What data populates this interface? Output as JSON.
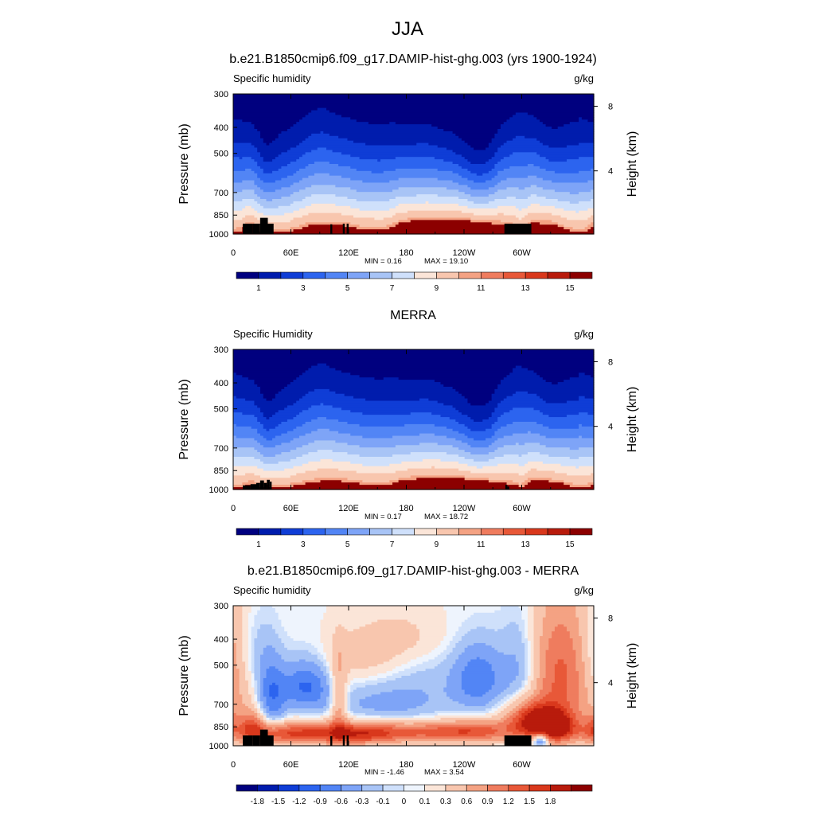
{
  "figure": {
    "title": "JJA",
    "colors": {
      "full_palette": [
        "#00007f",
        "#001cad",
        "#0f3dd6",
        "#2c64ef",
        "#5285f5",
        "#7ea4f7",
        "#a8c4f6",
        "#cfe0fb",
        "#fbe5d8",
        "#f8c6ae",
        "#f4a283",
        "#ef7c5e",
        "#e85838",
        "#d9381c",
        "#b81b0c",
        "#8c0000"
      ],
      "diff_palette": [
        "#00007f",
        "#001cad",
        "#0f3dd6",
        "#2c64ef",
        "#5285f5",
        "#7ea4f7",
        "#a8c4f6",
        "#cfe0fb",
        "#eef4fd",
        "#fbe5d8",
        "#f8c6ae",
        "#f4a283",
        "#ef7c5e",
        "#e85838",
        "#d9381c",
        "#b81b0c",
        "#8c0000"
      ],
      "terrain": "#000000"
    }
  },
  "chart_data": [
    {
      "type": "heatmap",
      "title": "b.e21.B1850cmip6.f09_g17.DAMIP-hist-ghg.003 (yrs 1900-1924)",
      "variable": "Specific humidity",
      "units": "g/kg",
      "ylabel": "Pressure (mb)",
      "y2label": "Height (km)",
      "x_ticks": [
        "0",
        "60E",
        "120E",
        "180",
        "120W",
        "60W"
      ],
      "y_ticks": [
        "300",
        "400",
        "500",
        "700",
        "850",
        "1000"
      ],
      "y2_ticks": [
        "8",
        "4"
      ],
      "ylim": [
        1000,
        300
      ],
      "min_text": "MIN = 0.16",
      "max_text": "MAX = 19.10",
      "colorbar_labels": [
        "1",
        "3",
        "5",
        "7",
        "9",
        "11",
        "13",
        "15"
      ],
      "levels": [
        1,
        2,
        3,
        4,
        5,
        6,
        7,
        8,
        9,
        10,
        11,
        12,
        13,
        14,
        15
      ],
      "bl_height_mb": [
        985,
        978,
        972,
        940,
        925,
        930,
        965,
        975,
        970,
        968,
        980,
        984,
        986,
        987,
        988,
        975,
        960,
        960,
        945,
        935,
        930,
        925,
        925,
        925,
        922,
        922,
        925,
        928,
        930,
        935,
        938,
        945,
        955,
        960,
        962,
        965,
        963,
        965,
        968,
        962,
        955,
        940,
        920,
        905,
        905,
        900,
        895,
        895,
        890,
        888,
        885,
        885,
        885,
        885,
        885,
        882,
        880,
        880,
        885,
        888,
        892,
        895,
        900,
        905,
        905,
        905,
        910,
        915,
        915,
        920,
        925,
        930,
        940,
        960,
        985,
        960,
        925,
        910,
        910,
        915,
        915,
        915,
        915,
        930,
        940,
        955,
        965,
        975,
        980,
        985
      ],
      "top_height_mb": [
        350,
        353,
        357,
        362,
        365,
        372,
        385,
        405,
        440,
        445,
        435,
        420,
        405,
        395,
        390,
        380,
        372,
        362,
        350,
        340,
        330,
        325,
        322,
        320,
        325,
        330,
        335,
        340,
        345,
        345,
        350,
        355,
        360,
        360,
        362,
        366,
        370,
        370,
        370,
        368,
        366,
        366,
        368,
        370,
        370,
        372,
        372,
        372,
        370,
        370,
        370,
        375,
        380,
        385,
        390,
        395,
        400,
        410,
        420,
        430,
        440,
        455,
        465,
        470,
        470,
        460,
        445,
        420,
        392,
        372,
        362,
        352,
        340,
        330,
        330,
        335,
        340,
        345,
        350,
        360,
        370,
        380,
        385,
        385,
        380,
        375,
        370,
        365,
        365,
        365
      ],
      "terrain": [
        {
          "lon": [
            10,
            20
          ],
          "p_top": 915
        },
        {
          "lon": [
            20,
            28
          ],
          "p_top": 915
        },
        {
          "lon": [
            28,
            36
          ],
          "p_top": 870
        },
        {
          "lon": [
            36,
            42
          ],
          "p_top": 915
        },
        {
          "lon": [
            101,
            103
          ],
          "p_top": 920
        },
        {
          "lon": [
            114,
            116
          ],
          "p_top": 915
        },
        {
          "lon": [
            118,
            120
          ],
          "p_top": 915
        },
        {
          "lon": [
            282,
            310
          ],
          "p_top": 915
        }
      ]
    },
    {
      "type": "heatmap",
      "title": "MERRA",
      "variable": "Specific Humidity",
      "units": "g/kg",
      "ylabel": "Pressure (mb)",
      "y2label": "Height (km)",
      "x_ticks": [
        "0",
        "60E",
        "120E",
        "180",
        "120W",
        "60W"
      ],
      "y_ticks": [
        "300",
        "400",
        "500",
        "700",
        "850",
        "1000"
      ],
      "y2_ticks": [
        "8",
        "4"
      ],
      "ylim": [
        1000,
        300
      ],
      "min_text": "MIN = 0.17",
      "max_text": "MAX = 18.72",
      "colorbar_labels": [
        "1",
        "3",
        "5",
        "7",
        "9",
        "11",
        "13",
        "15"
      ],
      "levels": [
        1,
        2,
        3,
        4,
        5,
        6,
        7,
        8,
        9,
        10,
        11,
        12,
        13,
        14,
        15
      ],
      "bl_height_mb": [
        985,
        982,
        978,
        968,
        955,
        955,
        965,
        975,
        972,
        968,
        978,
        980,
        982,
        984,
        985,
        975,
        965,
        962,
        955,
        948,
        945,
        938,
        935,
        930,
        928,
        928,
        928,
        930,
        935,
        938,
        940,
        945,
        950,
        955,
        960,
        962,
        960,
        962,
        965,
        962,
        958,
        950,
        940,
        930,
        925,
        920,
        915,
        915,
        910,
        905,
        905,
        900,
        900,
        900,
        900,
        900,
        902,
        905,
        908,
        912,
        916,
        920,
        925,
        930,
        930,
        930,
        935,
        940,
        940,
        945,
        948,
        955,
        960,
        965,
        990,
        965,
        935,
        928,
        928,
        930,
        930,
        932,
        935,
        940,
        945,
        955,
        965,
        975,
        980,
        985
      ],
      "top_height_mb": [
        345,
        350,
        355,
        360,
        365,
        372,
        385,
        405,
        440,
        450,
        440,
        425,
        410,
        398,
        390,
        382,
        372,
        362,
        350,
        340,
        332,
        326,
        322,
        320,
        325,
        330,
        335,
        340,
        345,
        347,
        350,
        355,
        358,
        360,
        362,
        364,
        366,
        367,
        368,
        366,
        364,
        364,
        366,
        368,
        368,
        370,
        370,
        370,
        368,
        368,
        368,
        372,
        378,
        383,
        390,
        395,
        400,
        410,
        420,
        432,
        445,
        460,
        470,
        472,
        470,
        460,
        445,
        420,
        390,
        370,
        360,
        350,
        338,
        328,
        328,
        333,
        338,
        343,
        350,
        360,
        370,
        380,
        385,
        385,
        380,
        375,
        370,
        365,
        365,
        365
      ],
      "terrain": [
        {
          "lon": [
            10,
            18
          ],
          "p_top": 965
        },
        {
          "lon": [
            18,
            24
          ],
          "p_top": 955
        },
        {
          "lon": [
            24,
            28
          ],
          "p_top": 945
        },
        {
          "lon": [
            28,
            32
          ],
          "p_top": 925
        },
        {
          "lon": [
            32,
            35
          ],
          "p_top": 945
        },
        {
          "lon": [
            35,
            38
          ],
          "p_top": 920
        },
        {
          "lon": [
            38,
            40
          ],
          "p_top": 935
        },
        {
          "lon": [
            283,
            285
          ],
          "p_top": 960
        },
        {
          "lon": [
            285,
            287
          ],
          "p_top": 975
        }
      ]
    },
    {
      "type": "heatmap",
      "title": "b.e21.B1850cmip6.f09_g17.DAMIP-hist-ghg.003 - MERRA",
      "variable": "Specific humidity",
      "units": "g/kg",
      "ylabel": "Pressure (mb)",
      "y2label": "Height (km)",
      "x_ticks": [
        "0",
        "60E",
        "120E",
        "180",
        "120W",
        "60W"
      ],
      "y_ticks": [
        "300",
        "400",
        "500",
        "700",
        "850",
        "1000"
      ],
      "y2_ticks": [
        "8",
        "4"
      ],
      "ylim": [
        1000,
        300
      ],
      "min_text": "MIN = -1.46",
      "max_text": "MAX = 3.54",
      "colorbar_labels": [
        "-1.8",
        "-1.5",
        "-1.2",
        "-0.9",
        "-0.6",
        "-0.3",
        "-0.1",
        "0",
        "0.1",
        "0.3",
        "0.6",
        "0.9",
        "1.2",
        "1.5",
        "1.8"
      ],
      "levels": [
        -1.8,
        -1.5,
        -1.2,
        -0.9,
        -0.6,
        -0.3,
        -0.1,
        0,
        0.1,
        0.3,
        0.6,
        0.9,
        1.2,
        1.5,
        1.8
      ],
      "blobs": [
        {
          "lon": 40,
          "p": 650,
          "dlon": 10,
          "dp": 140,
          "amp": -0.9
        },
        {
          "lon": 75,
          "p": 600,
          "dlon": 18,
          "dp": 90,
          "amp": -1.0
        },
        {
          "lon": 135,
          "p": 460,
          "dlon": 28,
          "dp": 70,
          "amp": 0.35
        },
        {
          "lon": 175,
          "p": 390,
          "dlon": 30,
          "dp": 60,
          "amp": 0.3
        },
        {
          "lon": 200,
          "p": 610,
          "dlon": 35,
          "dp": 120,
          "amp": -0.25
        },
        {
          "lon": 255,
          "p": 560,
          "dlon": 18,
          "dp": 110,
          "amp": -0.9
        },
        {
          "lon": 300,
          "p": 520,
          "dlon": 15,
          "dp": 160,
          "amp": -0.6
        },
        {
          "lon": 340,
          "p": 540,
          "dlon": 25,
          "dp": 220,
          "amp": 1.2
        },
        {
          "lon": 20,
          "p": 450,
          "dlon": 15,
          "dp": 120,
          "amp": -0.4
        },
        {
          "lon": 150,
          "p": 700,
          "dlon": 40,
          "dp": 80,
          "amp": -0.4
        },
        {
          "lon": 60,
          "p": 900,
          "dlon": 35,
          "dp": 60,
          "amp": 1.4
        },
        {
          "lon": 130,
          "p": 900,
          "dlon": 30,
          "dp": 60,
          "amp": 1.3
        },
        {
          "lon": 200,
          "p": 890,
          "dlon": 45,
          "dp": 55,
          "amp": 1.0
        },
        {
          "lon": 255,
          "p": 880,
          "dlon": 30,
          "dp": 60,
          "amp": 0.9
        },
        {
          "lon": 310,
          "p": 800,
          "dlon": 18,
          "dp": 90,
          "amp": 1.6
        },
        {
          "lon": 335,
          "p": 850,
          "dlon": 15,
          "dp": 80,
          "amp": 1.8
        },
        {
          "lon": 320,
          "p": 950,
          "dlon": 6,
          "dp": 40,
          "amp": -1.4
        },
        {
          "lon": 20,
          "p": 850,
          "dlon": 10,
          "dp": 80,
          "amp": 1.0
        },
        {
          "lon": 110,
          "p": 700,
          "dlon": 6,
          "dp": 180,
          "amp": 0.8
        }
      ],
      "terrain": [
        {
          "lon": [
            10,
            20
          ],
          "p_top": 915
        },
        {
          "lon": [
            20,
            28
          ],
          "p_top": 915
        },
        {
          "lon": [
            28,
            36
          ],
          "p_top": 870
        },
        {
          "lon": [
            36,
            42
          ],
          "p_top": 915
        },
        {
          "lon": [
            101,
            103
          ],
          "p_top": 920
        },
        {
          "lon": [
            114,
            116
          ],
          "p_top": 915
        },
        {
          "lon": [
            118,
            120
          ],
          "p_top": 915
        },
        {
          "lon": [
            282,
            310
          ],
          "p_top": 915
        }
      ]
    }
  ]
}
